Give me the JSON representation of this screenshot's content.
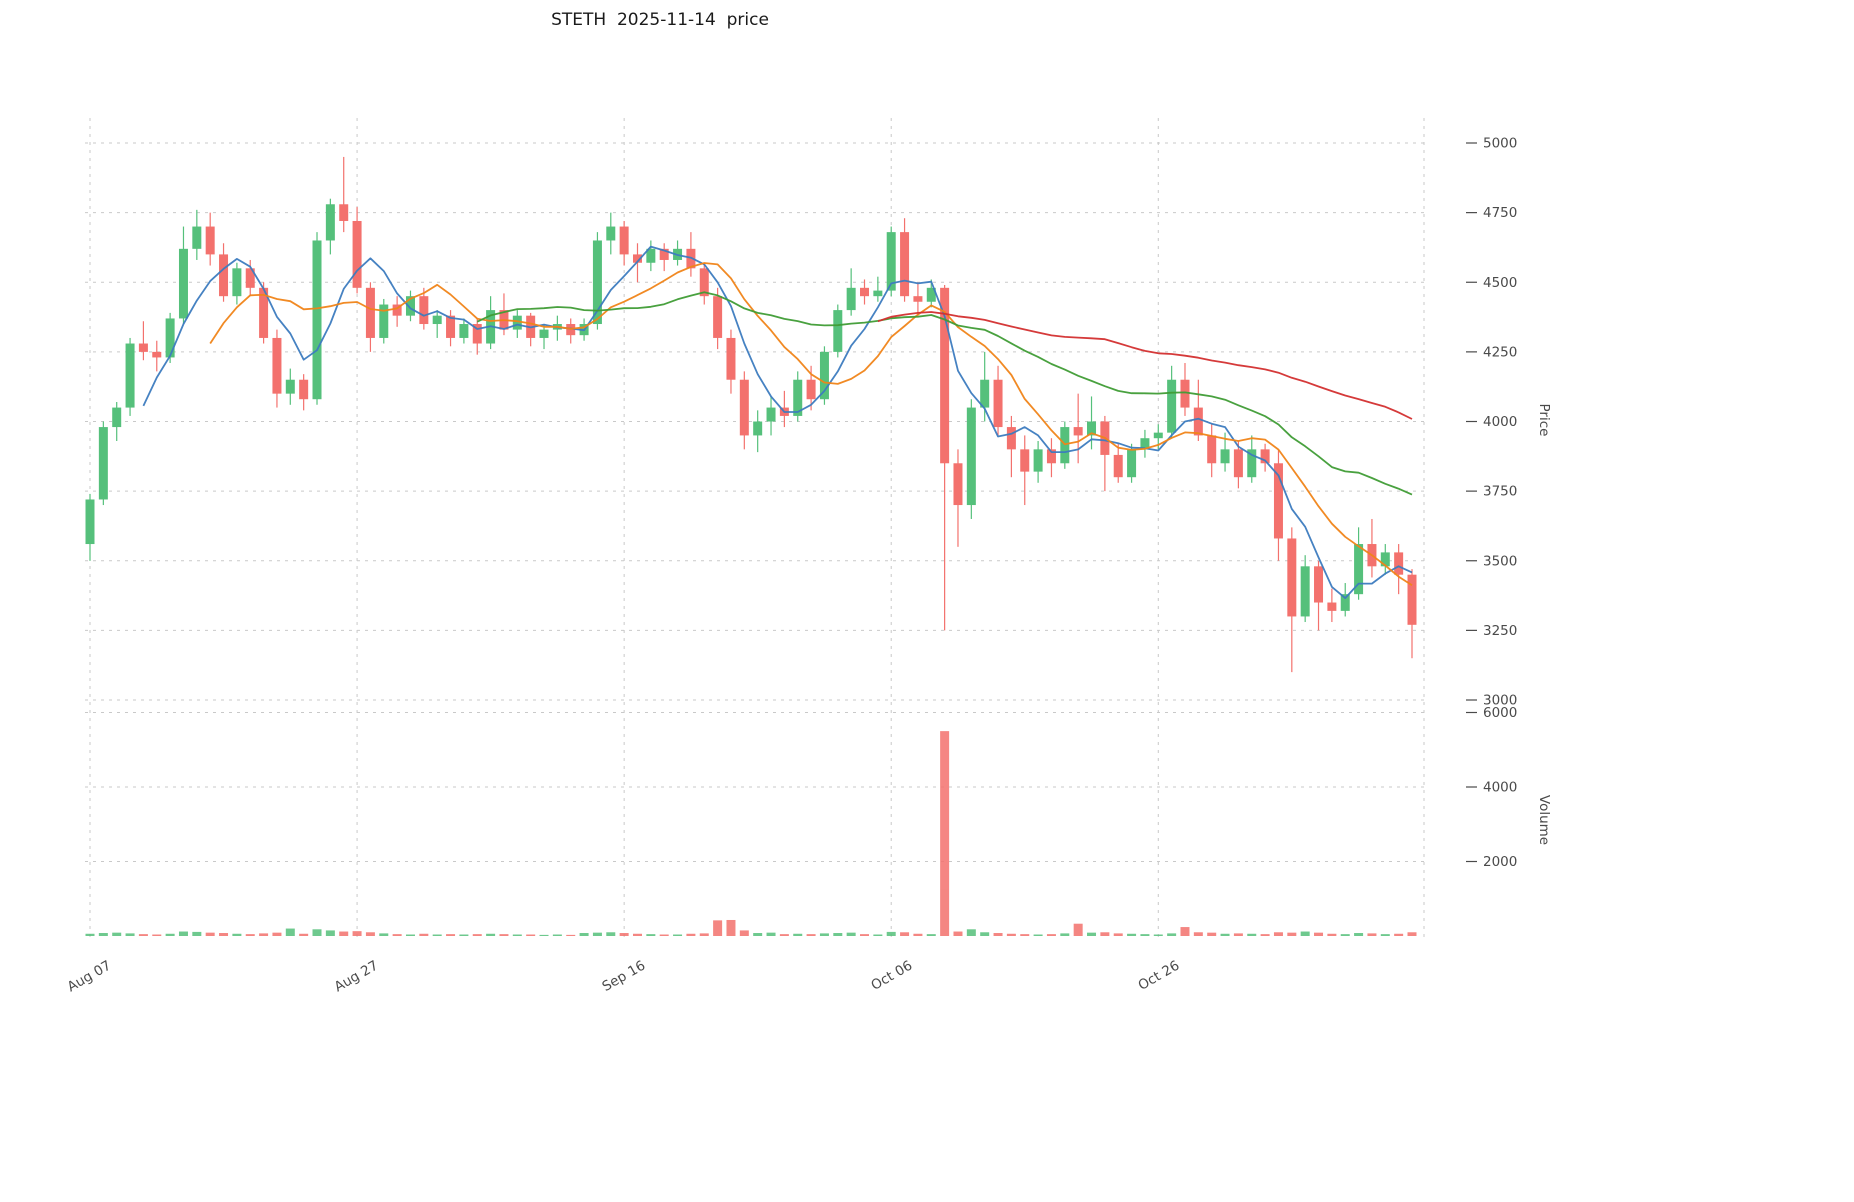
{
  "title": "STETH  2025-11-14  price",
  "colors": {
    "up": "#55c07b",
    "down": "#f3716d",
    "grid": "#c9c9c9",
    "tick_text": "#4a4a4a",
    "title_text": "#1a1a1a"
  },
  "chart_data": {
    "type": "candlestick",
    "symbol": "STETH",
    "as_of_date": "2025-11-14",
    "ylabel": "Price",
    "ylabel_lower": "Volume",
    "ylim": [
      3000,
      5000
    ],
    "volume_ylim": [
      0,
      6000
    ],
    "grid": "dashed",
    "price_ticks": [
      3000,
      3250,
      3500,
      3750,
      4000,
      4250,
      4500,
      4750,
      5000
    ],
    "volume_ticks": [
      2000,
      4000,
      6000
    ],
    "x_tick_labels": [
      "Aug 07",
      "Aug 27",
      "Sep 16",
      "Oct 06",
      "Oct 26"
    ],
    "x_tick_days": [
      0,
      20,
      40,
      60,
      80
    ],
    "start_date": "2025-08-07",
    "frequency": "daily",
    "moving_averages": [
      {
        "window": 5,
        "color": "#3c7bbf"
      },
      {
        "window": 10,
        "color": "#f08418"
      },
      {
        "window": 30,
        "color": "#3f9c35"
      },
      {
        "window": 60,
        "color": "#d32f2f"
      }
    ],
    "candles_format": [
      "open",
      "high",
      "low",
      "close",
      "volume"
    ],
    "candles": [
      [
        3560,
        3740,
        3500,
        3720,
        60
      ],
      [
        3720,
        4000,
        3700,
        3980,
        80
      ],
      [
        3980,
        4070,
        3930,
        4050,
        90
      ],
      [
        4050,
        4300,
        4020,
        4280,
        70
      ],
      [
        4280,
        4360,
        4220,
        4250,
        50
      ],
      [
        4250,
        4290,
        4180,
        4230,
        40
      ],
      [
        4230,
        4390,
        4210,
        4370,
        60
      ],
      [
        4370,
        4700,
        4350,
        4620,
        120
      ],
      [
        4620,
        4760,
        4580,
        4700,
        110
      ],
      [
        4700,
        4750,
        4560,
        4600,
        90
      ],
      [
        4600,
        4640,
        4430,
        4450,
        80
      ],
      [
        4450,
        4570,
        4420,
        4550,
        60
      ],
      [
        4550,
        4580,
        4450,
        4480,
        50
      ],
      [
        4480,
        4500,
        4280,
        4300,
        70
      ],
      [
        4300,
        4330,
        4050,
        4100,
        90
      ],
      [
        4100,
        4190,
        4060,
        4150,
        200
      ],
      [
        4150,
        4170,
        4040,
        4080,
        60
      ],
      [
        4080,
        4680,
        4060,
        4650,
        180
      ],
      [
        4650,
        4800,
        4600,
        4780,
        150
      ],
      [
        4780,
        4950,
        4680,
        4720,
        120
      ],
      [
        4720,
        4770,
        4460,
        4480,
        130
      ],
      [
        4480,
        4500,
        4250,
        4300,
        100
      ],
      [
        4300,
        4440,
        4280,
        4420,
        70
      ],
      [
        4420,
        4450,
        4340,
        4380,
        50
      ],
      [
        4380,
        4470,
        4360,
        4450,
        40
      ],
      [
        4450,
        4480,
        4330,
        4350,
        60
      ],
      [
        4350,
        4400,
        4300,
        4380,
        40
      ],
      [
        4380,
        4400,
        4270,
        4300,
        50
      ],
      [
        4300,
        4370,
        4280,
        4350,
        40
      ],
      [
        4350,
        4370,
        4240,
        4280,
        50
      ],
      [
        4280,
        4450,
        4260,
        4400,
        60
      ],
      [
        4400,
        4460,
        4310,
        4330,
        50
      ],
      [
        4330,
        4400,
        4300,
        4380,
        40
      ],
      [
        4380,
        4390,
        4270,
        4300,
        40
      ],
      [
        4300,
        4350,
        4260,
        4330,
        30
      ],
      [
        4330,
        4380,
        4290,
        4350,
        40
      ],
      [
        4350,
        4370,
        4280,
        4310,
        30
      ],
      [
        4310,
        4370,
        4290,
        4350,
        80
      ],
      [
        4350,
        4680,
        4330,
        4650,
        90
      ],
      [
        4650,
        4750,
        4600,
        4700,
        100
      ],
      [
        4700,
        4720,
        4560,
        4600,
        80
      ],
      [
        4600,
        4640,
        4500,
        4570,
        60
      ],
      [
        4570,
        4650,
        4540,
        4620,
        50
      ],
      [
        4620,
        4640,
        4540,
        4580,
        40
      ],
      [
        4580,
        4650,
        4560,
        4620,
        40
      ],
      [
        4620,
        4680,
        4520,
        4550,
        60
      ],
      [
        4550,
        4570,
        4420,
        4450,
        70
      ],
      [
        4450,
        4480,
        4260,
        4300,
        420
      ],
      [
        4300,
        4330,
        4100,
        4150,
        430
      ],
      [
        4150,
        4180,
        3900,
        3950,
        150
      ],
      [
        3950,
        4040,
        3890,
        4000,
        80
      ],
      [
        4000,
        4090,
        3950,
        4050,
        90
      ],
      [
        4050,
        4110,
        3980,
        4020,
        50
      ],
      [
        4020,
        4180,
        4000,
        4150,
        60
      ],
      [
        4150,
        4200,
        4040,
        4080,
        50
      ],
      [
        4080,
        4270,
        4060,
        4250,
        70
      ],
      [
        4250,
        4420,
        4230,
        4400,
        80
      ],
      [
        4400,
        4550,
        4380,
        4480,
        90
      ],
      [
        4480,
        4510,
        4420,
        4450,
        50
      ],
      [
        4450,
        4520,
        4430,
        4470,
        40
      ],
      [
        4470,
        4700,
        4450,
        4680,
        110
      ],
      [
        4680,
        4730,
        4430,
        4450,
        100
      ],
      [
        4450,
        4500,
        4380,
        4430,
        60
      ],
      [
        4430,
        4510,
        4410,
        4480,
        50
      ],
      [
        4480,
        4490,
        3250,
        3850,
        5500
      ],
      [
        3850,
        3900,
        3550,
        3700,
        120
      ],
      [
        3700,
        4080,
        3650,
        4050,
        180
      ],
      [
        4050,
        4250,
        4000,
        4150,
        100
      ],
      [
        4150,
        4200,
        3950,
        3980,
        80
      ],
      [
        3980,
        4020,
        3800,
        3900,
        60
      ],
      [
        3900,
        3950,
        3700,
        3820,
        50
      ],
      [
        3820,
        3930,
        3780,
        3900,
        40
      ],
      [
        3900,
        3940,
        3800,
        3850,
        50
      ],
      [
        3850,
        4000,
        3830,
        3980,
        70
      ],
      [
        3980,
        4100,
        3850,
        3950,
        330
      ],
      [
        3950,
        4090,
        3900,
        4000,
        90
      ],
      [
        4000,
        4020,
        3750,
        3880,
        100
      ],
      [
        3880,
        3920,
        3780,
        3800,
        70
      ],
      [
        3800,
        3920,
        3780,
        3900,
        60
      ],
      [
        3900,
        3970,
        3870,
        3940,
        50
      ],
      [
        3940,
        3990,
        3900,
        3960,
        40
      ],
      [
        3960,
        4200,
        3940,
        4150,
        70
      ],
      [
        4150,
        4210,
        4020,
        4050,
        240
      ],
      [
        4050,
        4150,
        3930,
        3950,
        100
      ],
      [
        3950,
        3990,
        3800,
        3850,
        90
      ],
      [
        3850,
        3960,
        3820,
        3900,
        60
      ],
      [
        3900,
        3930,
        3760,
        3800,
        70
      ],
      [
        3800,
        3950,
        3780,
        3900,
        60
      ],
      [
        3900,
        3920,
        3820,
        3850,
        50
      ],
      [
        3850,
        3900,
        3500,
        3580,
        100
      ],
      [
        3580,
        3620,
        3100,
        3300,
        90
      ],
      [
        3300,
        3520,
        3280,
        3480,
        120
      ],
      [
        3480,
        3500,
        3250,
        3350,
        90
      ],
      [
        3350,
        3400,
        3280,
        3320,
        60
      ],
      [
        3320,
        3420,
        3300,
        3380,
        50
      ],
      [
        3380,
        3620,
        3360,
        3560,
        80
      ],
      [
        3560,
        3650,
        3440,
        3480,
        70
      ],
      [
        3480,
        3560,
        3450,
        3530,
        50
      ],
      [
        3530,
        3560,
        3380,
        3450,
        60
      ],
      [
        3450,
        3470,
        3150,
        3270,
        100
      ]
    ]
  }
}
